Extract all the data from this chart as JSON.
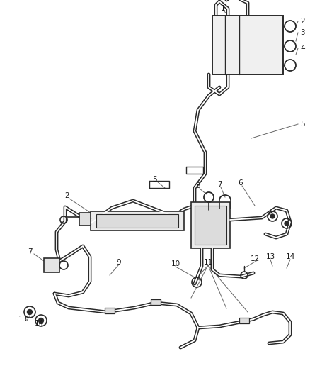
{
  "bg_color": "#ffffff",
  "line_color": "#2a2a2a",
  "label_color": "#1a1a1a",
  "leader_color": "#666666",
  "fig_width": 4.38,
  "fig_height": 5.33,
  "dpi": 100
}
